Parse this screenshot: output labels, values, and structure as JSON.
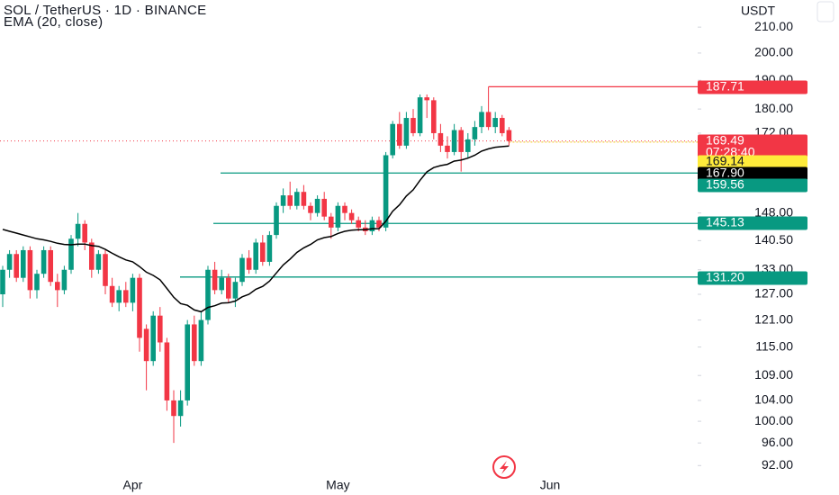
{
  "chart_data": {
    "type": "candlestick",
    "title": "SOL / TetherUS · 1D · BINANCE",
    "currency": "USDT",
    "log_scale": true,
    "up_color": "#089981",
    "down_color": "#f23645",
    "categories": [
      null,
      null,
      null,
      null,
      null,
      null,
      null,
      null,
      null,
      null,
      null,
      null,
      null,
      null,
      null,
      null,
      null,
      null,
      null,
      "Apr",
      null,
      null,
      null,
      null,
      null,
      null,
      null,
      null,
      null,
      null,
      null,
      null,
      null,
      null,
      null,
      null,
      null,
      null,
      null,
      null,
      null,
      null,
      null,
      null,
      null,
      null,
      null,
      null,
      null,
      "May",
      null,
      null,
      null,
      null,
      null,
      null,
      null,
      null,
      null,
      null,
      null,
      null,
      null,
      null,
      null,
      null,
      null,
      null,
      null,
      null,
      null,
      null,
      null,
      null,
      null,
      null,
      null,
      null,
      null,
      null,
      "Jun"
    ],
    "open": [
      127,
      133,
      137,
      131,
      138,
      128,
      132,
      138,
      130,
      128,
      133,
      141,
      145,
      140,
      133,
      137,
      129,
      125,
      128,
      125,
      131,
      119,
      112,
      122,
      116,
      104,
      101,
      104,
      120,
      112,
      121,
      133,
      128,
      131,
      126,
      130,
      136,
      133,
      140,
      135,
      142,
      150,
      153,
      150,
      154,
      150,
      148,
      152,
      147,
      144,
      150,
      148,
      146,
      144,
      143,
      146,
      144,
      165,
      175,
      168,
      177,
      172,
      184,
      183,
      172,
      168,
      166,
      173,
      166,
      170,
      174,
      179,
      174,
      177,
      173,
      null,
      null,
      null,
      null,
      null,
      null
    ],
    "high": [
      134,
      138,
      138,
      139,
      139,
      133,
      139,
      139,
      132,
      134,
      142,
      148,
      146,
      141,
      138,
      138,
      131,
      129,
      130,
      132,
      132,
      120,
      123,
      124,
      117,
      106,
      106,
      121,
      122,
      123,
      134,
      135,
      133,
      132,
      131,
      137,
      138,
      141,
      142,
      143,
      151,
      155,
      157,
      155,
      156,
      151,
      153,
      154,
      148,
      151,
      151,
      149,
      147,
      146,
      147,
      147,
      166,
      176,
      179,
      179,
      180,
      185,
      185,
      184,
      175,
      171,
      175,
      174,
      172,
      176,
      181,
      187.71,
      179,
      178,
      174,
      null,
      null,
      null,
      null,
      null,
      null
    ],
    "low": [
      124,
      131,
      130,
      130,
      126,
      126,
      131,
      129,
      124,
      127,
      132,
      139,
      138,
      131,
      132,
      127,
      124,
      123,
      124,
      123,
      114,
      106,
      111,
      114,
      102,
      96,
      99,
      103,
      111,
      111,
      120,
      127,
      127,
      125,
      124,
      129,
      132,
      132,
      134,
      134,
      141,
      148,
      149,
      149,
      149,
      146,
      147,
      146,
      141,
      143,
      146,
      145,
      143,
      142,
      142,
      143,
      143,
      164,
      167,
      167,
      171,
      171,
      177,
      170,
      166,
      164,
      165,
      160,
      164,
      168,
      172,
      173,
      172,
      171,
      168,
      null,
      null,
      null,
      null,
      null,
      null
    ],
    "close": [
      133,
      137,
      131,
      138,
      128,
      132,
      138,
      130,
      128,
      133,
      141,
      145,
      140,
      133,
      137,
      129,
      125,
      128,
      125,
      131,
      117,
      112,
      122,
      116,
      104,
      101,
      104,
      120,
      112,
      121,
      133,
      128,
      131,
      126,
      130,
      136,
      133,
      140,
      135,
      142,
      150,
      153,
      150,
      154,
      150,
      148,
      152,
      147,
      144,
      150,
      148,
      146,
      144,
      143,
      146,
      144,
      165,
      175,
      168,
      177,
      172,
      184,
      183,
      172,
      168,
      166,
      173,
      166,
      170,
      174,
      179,
      174,
      177,
      172,
      169.49,
      null,
      null,
      null,
      null,
      null,
      null
    ],
    "series": [
      {
        "name": "EMA (20, close)",
        "color": "#000000",
        "values": [
          143.5,
          143,
          142.5,
          142,
          141.5,
          141,
          140.7,
          140.3,
          139.8,
          139.5,
          139.4,
          139.6,
          139.6,
          139.2,
          139,
          138.2,
          137.2,
          136.3,
          135.5,
          135,
          133.8,
          132.4,
          131.6,
          130.5,
          128.4,
          126.3,
          124.8,
          124.4,
          123.3,
          122.9,
          123.9,
          124.3,
          124.9,
          125,
          125.4,
          126.4,
          127,
          128.2,
          128.9,
          130.2,
          132.2,
          134.2,
          135.7,
          137.4,
          138.6,
          139.5,
          140.7,
          141.3,
          141.6,
          142.4,
          143,
          143.3,
          143.4,
          143.4,
          143.7,
          143.7,
          145.7,
          148.5,
          150.3,
          152.8,
          154.6,
          157.4,
          159.9,
          161.2,
          161.8,
          162.2,
          163.2,
          163.5,
          164.1,
          165,
          166.3,
          167,
          167.5,
          167.7,
          167.9,
          null,
          null,
          null,
          null,
          null,
          null
        ]
      }
    ],
    "ylim": [
      90.5,
      221
    ],
    "yticks": [
      {
        "value": 210,
        "label": "210.00"
      },
      {
        "value": 200,
        "label": "200.00"
      },
      {
        "value": 190,
        "label": "190.00"
      },
      {
        "value": 180,
        "label": "180.00"
      },
      {
        "value": 172,
        "label": "172.00"
      },
      {
        "value": 148,
        "label": "148.00"
      },
      {
        "value": 140.5,
        "label": "140.50"
      },
      {
        "value": 133,
        "label": "133.00"
      },
      {
        "value": 127,
        "label": "127.00"
      },
      {
        "value": 121,
        "label": "121.00"
      },
      {
        "value": 115,
        "label": "115.00"
      },
      {
        "value": 109,
        "label": "109.00"
      },
      {
        "value": 104,
        "label": "104.00"
      },
      {
        "value": 100,
        "label": "100.00"
      },
      {
        "value": 96,
        "label": "96.00"
      },
      {
        "value": 92,
        "label": "92.00"
      }
    ],
    "price_labels": [
      {
        "value": 187.71,
        "color": "#f23645"
      },
      {
        "value": 169.49,
        "color": "#f23645",
        "countdown": "07:28:40"
      },
      {
        "value": 169.14,
        "color": "#ffeb3b"
      },
      {
        "value": 167.9,
        "label": "167.90",
        "color": "#000000"
      },
      {
        "value": 159.56,
        "color": "#089981"
      },
      {
        "value": 145.13,
        "color": "#089981"
      },
      {
        "value": 131.2,
        "label": "131.20",
        "color": "#089981"
      }
    ]
  }
}
